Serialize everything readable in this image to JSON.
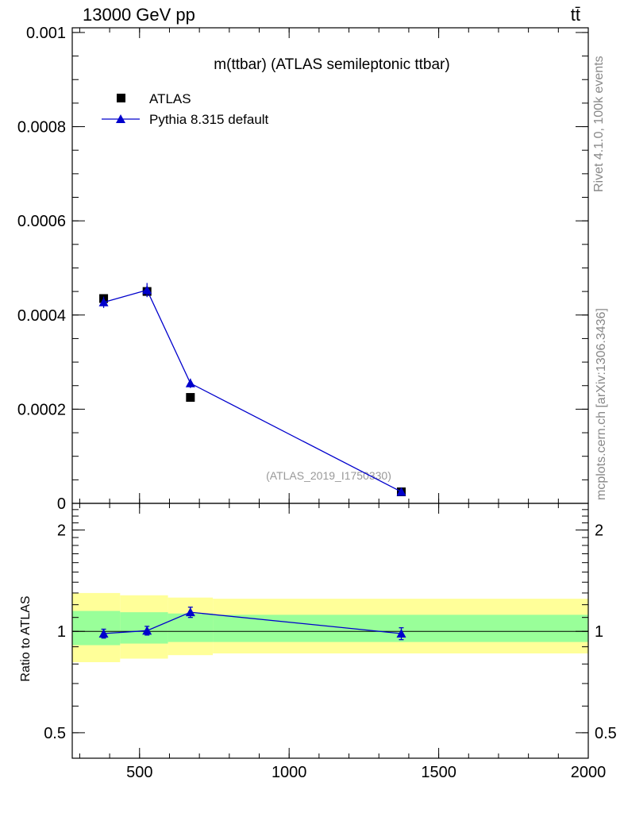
{
  "header": {
    "left": "13000 GeV pp",
    "right": "tt̄"
  },
  "side_labels": {
    "top": "Rivet 4.1.0,  100k events",
    "bottom": "mcplots.cern.ch [arXiv:1306.3436]"
  },
  "colors": {
    "atlas": "#000000",
    "pythia": "#0000cc",
    "band_inner": "#99ff99",
    "band_outer": "#ffff99"
  },
  "chart_data": [
    {
      "type": "scatter",
      "title": "m(ttbar) (ATLAS semileptonic ttbar)",
      "watermark": "(ATLAS_2019_I1750330)",
      "xlim": [
        275,
        2000
      ],
      "ylim": [
        0,
        0.00101
      ],
      "yticks": [
        0,
        0.0002,
        0.0004,
        0.0006,
        0.0008,
        0.001
      ],
      "ytick_labels": [
        "0",
        "0.0002",
        "0.0004",
        "0.0006",
        "0.0008",
        "0.001"
      ],
      "legend": "top-left",
      "series": [
        {
          "name": "ATLAS",
          "marker": "square",
          "x": [
            380,
            525,
            670,
            1375
          ],
          "y": [
            0.000435,
            0.00045,
            0.000225,
            2.45e-05
          ]
        },
        {
          "name": "Pythia 8.315 default",
          "marker": "triangle",
          "x": [
            380,
            525,
            670,
            1375
          ],
          "y": [
            0.000427,
            0.000453,
            0.000255,
            2.45e-05
          ],
          "yerr": [
            1.2e-05,
            1.5e-05,
            1e-05,
            2e-06
          ]
        }
      ]
    },
    {
      "type": "scatter",
      "ylabel": "Ratio to ATLAS",
      "xlim": [
        275,
        2000
      ],
      "ylim": [
        0.42,
        2.4
      ],
      "log_y": true,
      "xticks": [
        500,
        1000,
        1500,
        2000
      ],
      "xtick_labels": [
        "500",
        "1000",
        "1500",
        "2000"
      ],
      "yticks": [
        0.5,
        1,
        2
      ],
      "ytick_labels": [
        "0.5",
        "1",
        "2"
      ],
      "bins": [
        {
          "lo": 275,
          "hi": 435,
          "inner": [
            0.91,
            1.15
          ],
          "outer": [
            0.81,
            1.3
          ]
        },
        {
          "lo": 435,
          "hi": 595,
          "inner": [
            0.92,
            1.14
          ],
          "outer": [
            0.83,
            1.28
          ]
        },
        {
          "lo": 595,
          "hi": 745,
          "inner": [
            0.93,
            1.13
          ],
          "outer": [
            0.85,
            1.26
          ]
        },
        {
          "lo": 745,
          "hi": 2000,
          "inner": [
            0.93,
            1.12
          ],
          "outer": [
            0.86,
            1.25
          ]
        }
      ],
      "series": [
        {
          "name": "Pythia 8.315 default",
          "x": [
            380,
            525,
            670,
            1375
          ],
          "y": [
            0.985,
            1.005,
            1.14,
            0.985
          ],
          "yerr": [
            0.03,
            0.03,
            0.04,
            0.04
          ]
        }
      ]
    }
  ]
}
